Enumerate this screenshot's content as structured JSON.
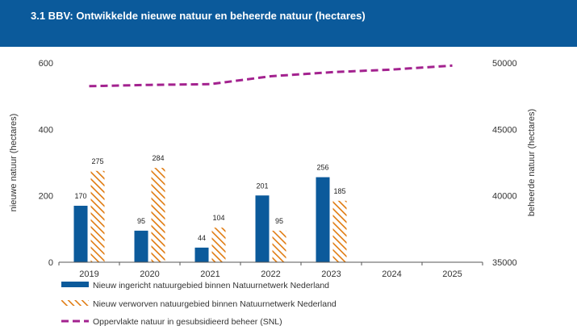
{
  "header": {
    "title": "3.1 BBV: Ontwikkelde nieuwe natuur en beheerde natuur (hectares)"
  },
  "colors": {
    "header_bg": "#0b5a9b",
    "bar_blue": "#0b5a9b",
    "bar_orange": "#e07b10",
    "line_purple": "#a3228f",
    "axis": "#555555",
    "grid": "#cccccc"
  },
  "chart_data": {
    "type": "bar",
    "categories": [
      "2019",
      "2020",
      "2021",
      "2022",
      "2023",
      "2024",
      "2025"
    ],
    "y_left": {
      "label": "nieuwe natuur (hectares)",
      "range": [
        0,
        600
      ],
      "ticks": [
        0,
        200,
        400,
        600
      ]
    },
    "y_right": {
      "label": "beheerde natuur (hectares)",
      "range": [
        35000,
        50000
      ],
      "ticks": [
        35000,
        40000,
        45000,
        50000
      ]
    },
    "series": [
      {
        "name": "Nieuw ingericht natuurgebied binnen Natuurnetwerk Nederland",
        "type": "bar",
        "axis": "left",
        "style": "solid",
        "values": [
          170,
          95,
          44,
          201,
          256,
          null,
          null
        ]
      },
      {
        "name": "Nieuw verworven natuurgebied binnen Natuurnetwerk Nederland",
        "type": "bar",
        "axis": "left",
        "style": "hatched",
        "values": [
          275,
          284,
          104,
          95,
          185,
          null,
          null
        ]
      },
      {
        "name": "Oppervlakte natuur in gesubsidieerd beheer (SNL)",
        "type": "line",
        "axis": "right",
        "style": "dashed",
        "values": [
          48250,
          48350,
          48400,
          49000,
          49300,
          49500,
          49800
        ]
      }
    ],
    "legend_position": "bottom"
  }
}
